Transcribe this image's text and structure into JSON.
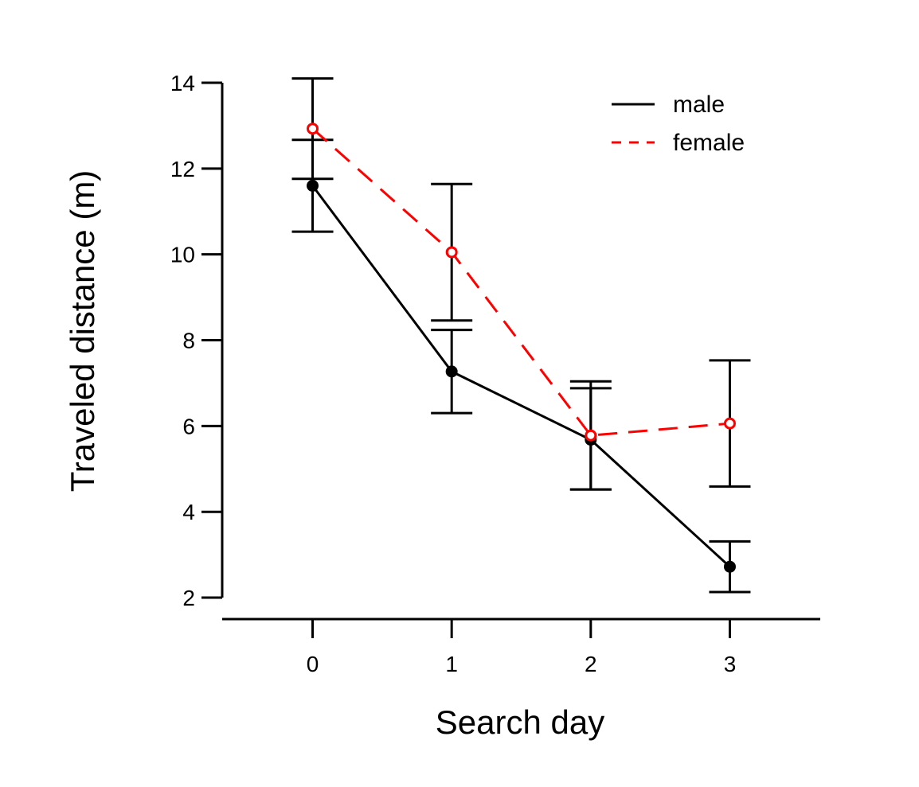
{
  "chart_data": {
    "type": "line",
    "title": "",
    "xlabel": "Search day",
    "ylabel": "Traveled distance (m)",
    "x": [
      0,
      1,
      2,
      3
    ],
    "xlim": [
      -0.65,
      3.65
    ],
    "ylim": [
      1.5,
      14.0
    ],
    "xticks": [
      0,
      1,
      2,
      3
    ],
    "yticks": [
      2,
      4,
      6,
      8,
      10,
      12,
      14
    ],
    "grid": false,
    "legend_position": "top-right",
    "series": [
      {
        "name": "male",
        "color": "#000000",
        "line_style": "solid",
        "marker": "filled-circle",
        "values": [
          11.6,
          7.27,
          5.68,
          2.72
        ],
        "error_low": [
          10.53,
          6.3,
          4.52,
          2.13
        ],
        "error_high": [
          12.67,
          8.24,
          6.88,
          3.31
        ]
      },
      {
        "name": "female",
        "color": "#ff0000",
        "line_style": "dashed",
        "marker": "open-circle",
        "values": [
          12.93,
          10.05,
          5.78,
          6.06
        ],
        "error_low": [
          11.76,
          8.46,
          4.52,
          4.59
        ],
        "error_high": [
          14.1,
          11.64,
          7.04,
          7.53
        ]
      }
    ]
  }
}
